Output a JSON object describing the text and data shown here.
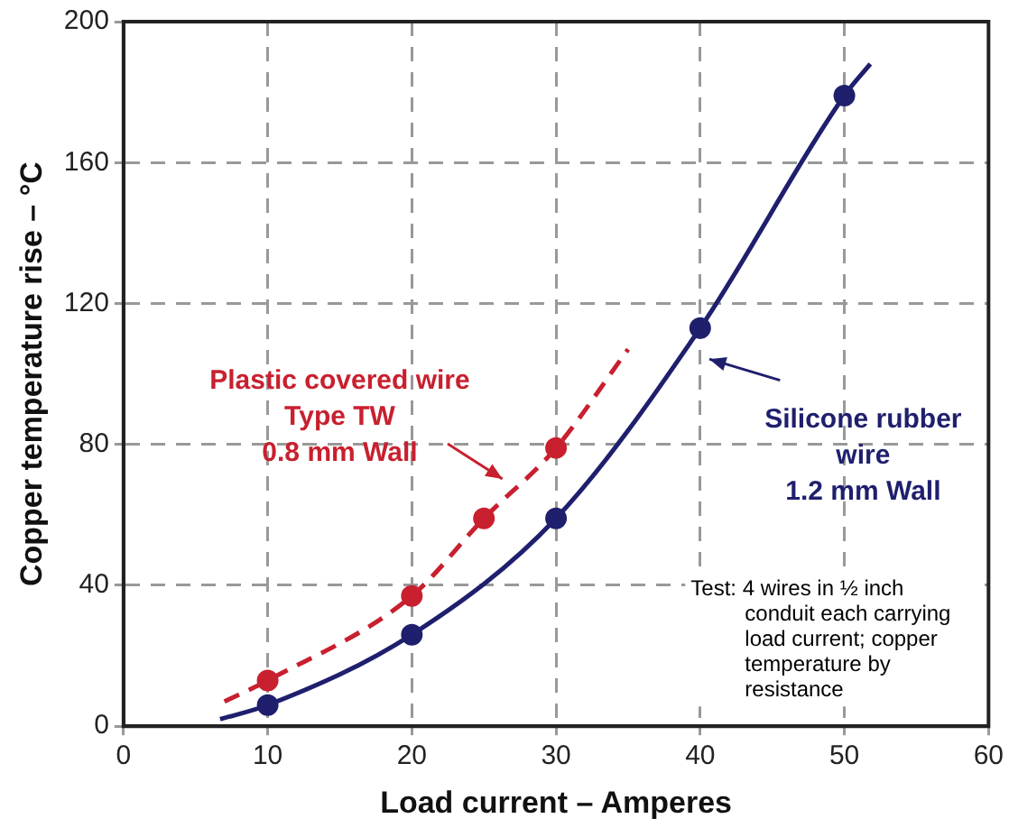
{
  "chart_data": {
    "type": "line",
    "xlabel": "Load current – Amperes",
    "ylabel": "Copper temperature rise – °C",
    "xlim": [
      0,
      60
    ],
    "xticks": [
      0,
      10,
      20,
      30,
      40,
      50,
      60
    ],
    "ylim": [
      0,
      200
    ],
    "yticks": [
      0,
      40,
      80,
      120,
      160,
      200
    ],
    "grid": true,
    "series": [
      {
        "name": "Plastic covered wire\nType TW\n0.8 mm Wall",
        "color": "#c8202f",
        "line_style": "dashed",
        "marker": "none",
        "x": [
          7,
          10,
          20,
          25,
          30,
          35
        ],
        "values": [
          7,
          13,
          37,
          59,
          79,
          107
        ]
      },
      {
        "name": "Silicone rubber\nwire\n1.2 mm Wall",
        "color": "#1f1f6e",
        "line_style": "solid",
        "marker": "none",
        "x": [
          6.7,
          10,
          20,
          30,
          40,
          50,
          51.8
        ],
        "values": [
          2,
          6,
          26,
          59,
          113,
          179,
          188
        ]
      },
      {
        "type": "scatter",
        "color": "#c8202f",
        "marker": "circle",
        "x": [
          10,
          20,
          25,
          30
        ],
        "values": [
          13,
          37,
          59,
          79
        ]
      },
      {
        "type": "scatter",
        "color": "#1f1f6e",
        "marker": "circle",
        "x": [
          10,
          20,
          30,
          40,
          50
        ],
        "values": [
          6,
          26,
          59,
          113,
          179
        ]
      }
    ],
    "annotations": [
      "Test: 4 wires in ½ inch conduit each carrying load current; copper temperature by resistance"
    ]
  }
}
